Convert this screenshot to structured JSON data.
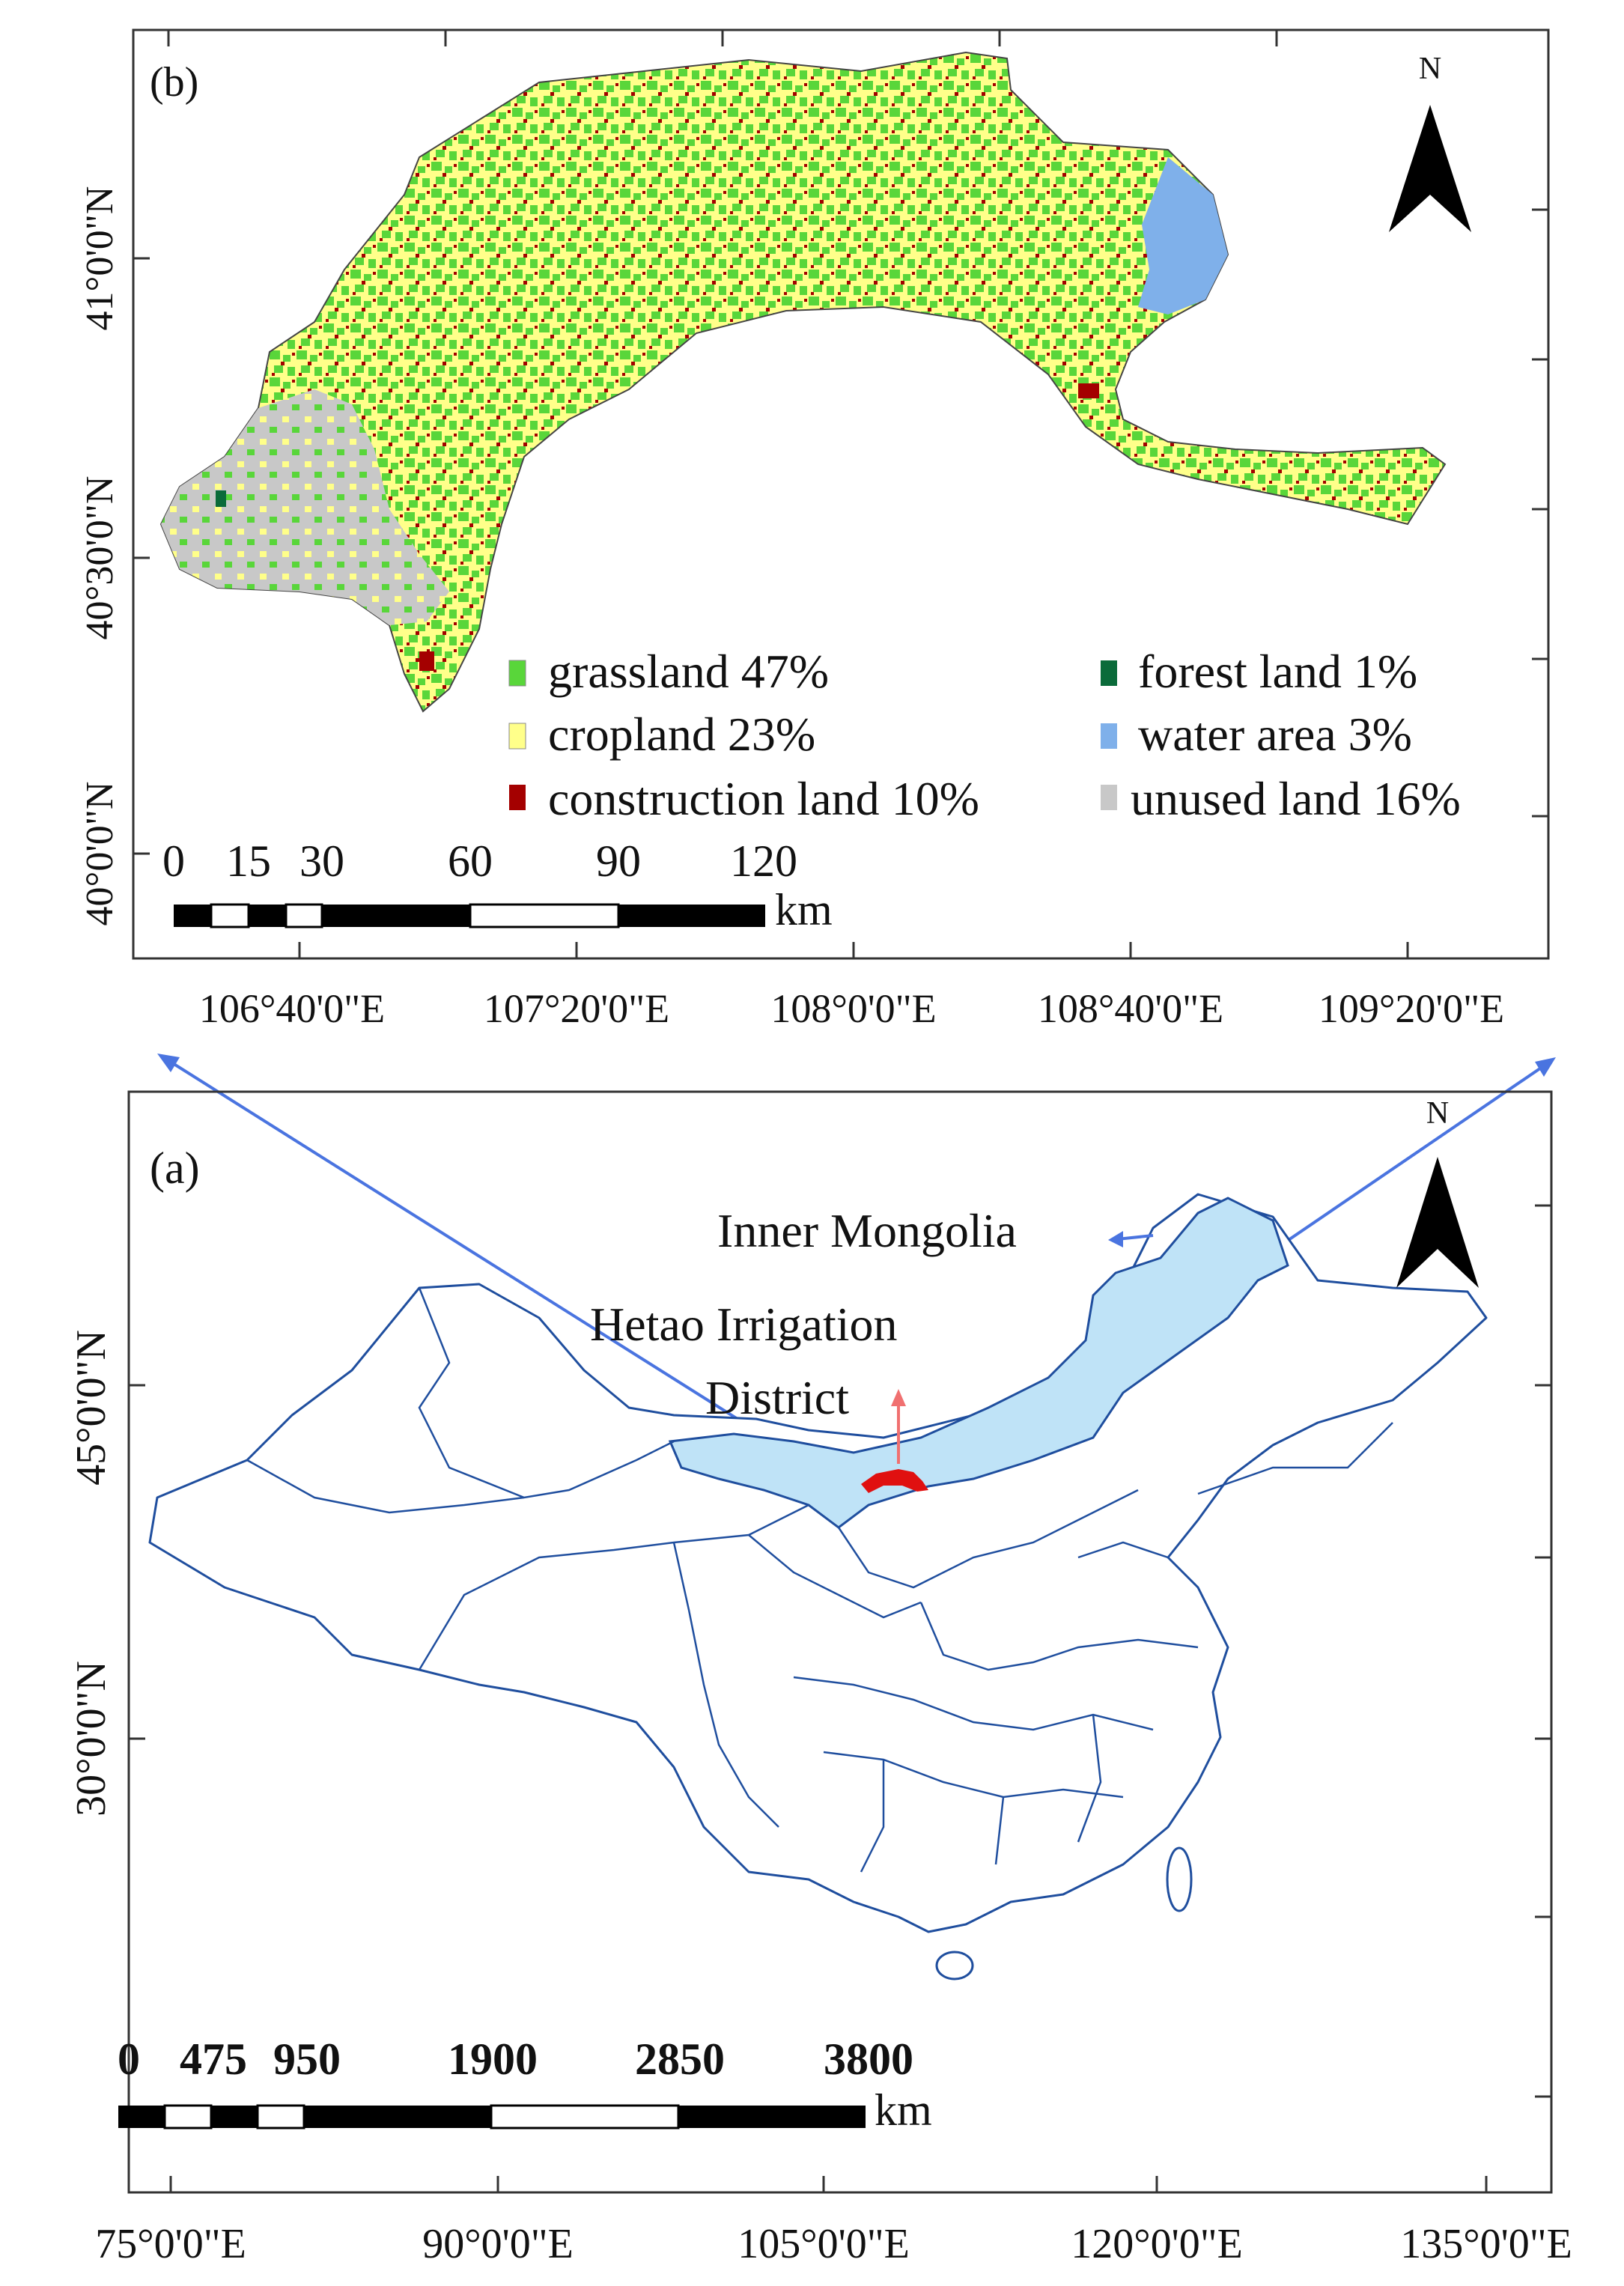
{
  "panel_b": {
    "label": "(b)",
    "north": "N",
    "lat_labels": [
      "41°0'0\"N",
      "40°30'0\"N",
      "40°0'0\"N"
    ],
    "lon_labels": [
      "106°40'0\"E",
      "107°20'0\"E",
      "108°0'0\"E",
      "108°40'0\"E",
      "109°20'0\"E"
    ],
    "scale_labels": [
      "0",
      "15",
      "30",
      "60",
      "90",
      "120"
    ],
    "scale_unit": "km",
    "legend": [
      {
        "label": "grassland 47%",
        "color": "#59d63a",
        "share": 47
      },
      {
        "label": "cropland 23%",
        "color": "#ffff8a",
        "share": 23
      },
      {
        "label": "construction land 10%",
        "color": "#a40000",
        "share": 10
      },
      {
        "label": "forest land 1%",
        "color": "#0b6b3a",
        "share": 1
      },
      {
        "label": "water area 3%",
        "color": "#7fb0ea",
        "share": 3
      },
      {
        "label": "unused land 16%",
        "color": "#c8c8c8",
        "share": 16
      }
    ]
  },
  "panel_a": {
    "label": "(a)",
    "north": "N",
    "annotations": {
      "inner_mongolia": "Inner Mongolia",
      "hetao_line1": "Hetao Irrigation",
      "hetao_line2": "District"
    },
    "lat_labels": [
      "45°0'0\"N",
      "30°0'0\"N"
    ],
    "lon_labels": [
      "75°0'0\"E",
      "90°0'0\"E",
      "105°0'0\"E",
      "120°0'0\"E",
      "135°0'0\"E"
    ],
    "scale_labels": [
      "0",
      "475",
      "950",
      "1900",
      "2850",
      "3800"
    ],
    "scale_unit": "km",
    "colors": {
      "inner_mongolia": "#bfe3f7",
      "boundary": "#1f4e9e",
      "hetao": "#e01010",
      "connector": "#4a74e0"
    }
  }
}
